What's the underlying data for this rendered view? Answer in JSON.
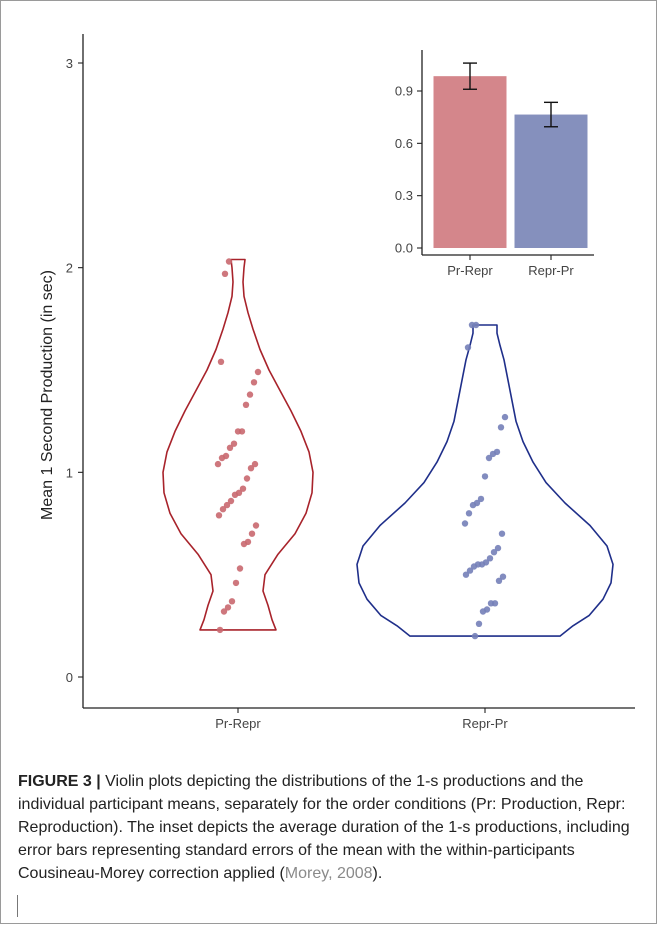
{
  "chart_data": [
    {
      "type": "violin",
      "ylabel": "Mean 1 Second Production (in sec)",
      "xlabel": "",
      "categories": [
        "Pr-Repr",
        "Repr-Pr"
      ],
      "ylim": [
        -0.15,
        3.15
      ],
      "yticks": [
        0,
        1,
        2,
        3
      ],
      "grid": false,
      "series": [
        {
          "name": "Pr-Repr",
          "color": "#a8232b",
          "point_color": "#c9686f",
          "range": [
            0.23,
            2.04
          ],
          "points": [
            2.03,
            1.97,
            1.54,
            1.49,
            1.44,
            1.38,
            1.33,
            1.2,
            1.2,
            1.14,
            1.12,
            1.08,
            1.07,
            1.04,
            1.04,
            1.02,
            0.97,
            0.92,
            0.9,
            0.89,
            0.86,
            0.84,
            0.82,
            0.79,
            0.74,
            0.7,
            0.66,
            0.65,
            0.53,
            0.46,
            0.37,
            0.34,
            0.32,
            0.23
          ]
        },
        {
          "name": "Repr-Pr",
          "color": "#1f2f8a",
          "point_color": "#7480b8",
          "range": [
            0.2,
            1.72
          ],
          "points": [
            1.72,
            1.72,
            1.61,
            1.27,
            1.22,
            1.1,
            1.09,
            1.07,
            0.98,
            0.87,
            0.85,
            0.84,
            0.8,
            0.75,
            0.7,
            0.63,
            0.61,
            0.58,
            0.56,
            0.55,
            0.55,
            0.54,
            0.52,
            0.5,
            0.49,
            0.47,
            0.36,
            0.36,
            0.33,
            0.32,
            0.26,
            0.2
          ]
        }
      ]
    },
    {
      "type": "bar",
      "title": "",
      "categories": [
        "Pr-Repr",
        "Repr-Pr"
      ],
      "values": [
        0.985,
        0.765
      ],
      "error": [
        0.075,
        0.07
      ],
      "colors": [
        "#d4868b",
        "#8590bd"
      ],
      "ylim": [
        -0.02,
        1.08
      ],
      "yticks": [
        0.0,
        0.3,
        0.6,
        0.9
      ],
      "ytick_labels": [
        "0.0",
        "0.3",
        "0.6",
        "0.9"
      ]
    }
  ],
  "caption": {
    "label": "FIGURE 3 |",
    "text": " Violin plots depicting the distributions of the 1-s productions and the individual participant means, separately for the order conditions (Pr: Production, Repr: Reproduction). The inset depicts the average duration of the 1-s productions, including error bars representing standard errors of the mean with the within-participants Cousineau-Morey correction applied (",
    "citation": "Morey, 2008",
    "end": ")."
  }
}
